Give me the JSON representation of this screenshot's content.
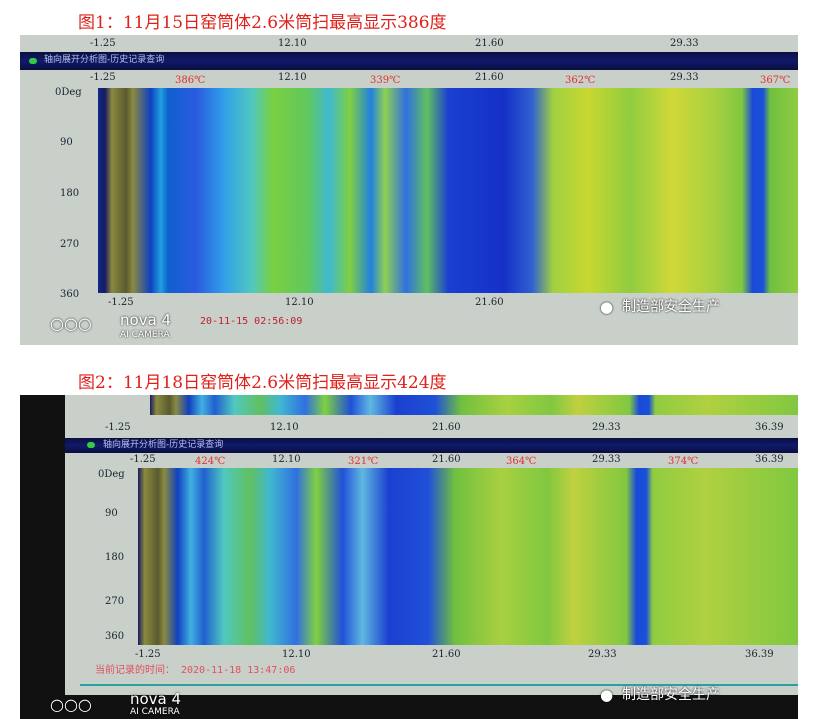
{
  "captions": [
    "图1：11月15日窑筒体2.6米筒扫最高显示386度",
    "图2：11月18日窑筒体2.6米筒扫最高显示424度"
  ],
  "fig1": {
    "top_ticks": [
      "-1.25",
      "12.10",
      "21.60",
      "29.33"
    ],
    "window_title": "轴向展开分析图-历史记录查询",
    "axis_ticks": [
      "-1.25",
      "12.10",
      "21.60",
      "29.33"
    ],
    "temps": [
      "386℃",
      "339℃",
      "362℃",
      "367℃"
    ],
    "y_labels": [
      "0Deg",
      "90",
      "180",
      "270",
      "360"
    ],
    "bottom_ticks": [
      "-1.25",
      "12.10",
      "21.60"
    ],
    "timestamp": "20-11-15 02:56:09",
    "camera": {
      "brand": "nova 4",
      "sub": "AI CAMERA"
    },
    "watermark": "制造部安全生产"
  },
  "fig2": {
    "top_ticks": [
      "-1.25",
      "12.10",
      "21.60",
      "29.33",
      "36.39"
    ],
    "window_title": "轴向展开分析图-历史记录查询",
    "axis_ticks": [
      "-1.25",
      "12.10",
      "21.60",
      "29.33",
      "36.39"
    ],
    "temps": [
      "424℃",
      "321℃",
      "364℃",
      "374℃"
    ],
    "y_labels": [
      "0Deg",
      "90",
      "180",
      "270",
      "360"
    ],
    "bottom_ticks": [
      "-1.25",
      "12.10",
      "21.60",
      "29.33",
      "36.39"
    ],
    "timestamp_label": "当前记录的时间：",
    "timestamp": "2020-11-18 13:47:06",
    "camera": {
      "brand": "nova 4",
      "sub": "AI CAMERA"
    },
    "watermark": "制造部安全生产"
  }
}
